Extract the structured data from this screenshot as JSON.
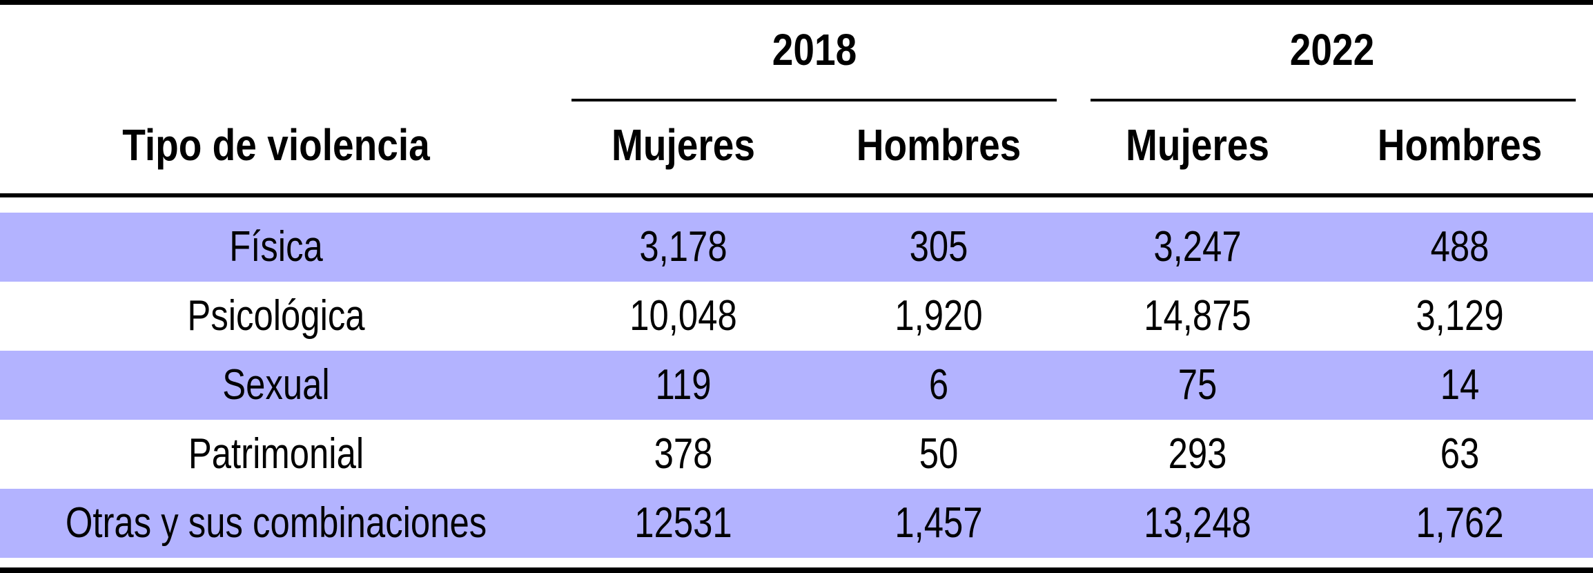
{
  "table": {
    "header": {
      "row_label": "Tipo de violencia",
      "years": [
        {
          "year": "2018",
          "sub": [
            "Mujeres",
            "Hombres"
          ]
        },
        {
          "year": "2022",
          "sub": [
            "Mujeres",
            "Hombres"
          ]
        }
      ]
    },
    "rows": [
      {
        "label": "Física",
        "values": [
          "3,178",
          "305",
          "3,247",
          "488"
        ]
      },
      {
        "label": "Psicológica",
        "values": [
          "10,048",
          "1,920",
          "14,875",
          "3,129"
        ]
      },
      {
        "label": "Sexual",
        "values": [
          "119",
          "6",
          "75",
          "14"
        ]
      },
      {
        "label": "Patrimonial",
        "values": [
          "378",
          "50",
          "293",
          "63"
        ]
      },
      {
        "label": "Otras y sus combinaciones",
        "values": [
          "12531",
          "1,457",
          "13,248",
          "1,762"
        ]
      }
    ],
    "colors": {
      "band": "#b3b3ff",
      "plain": "#ffffff",
      "rule": "#000000"
    }
  }
}
